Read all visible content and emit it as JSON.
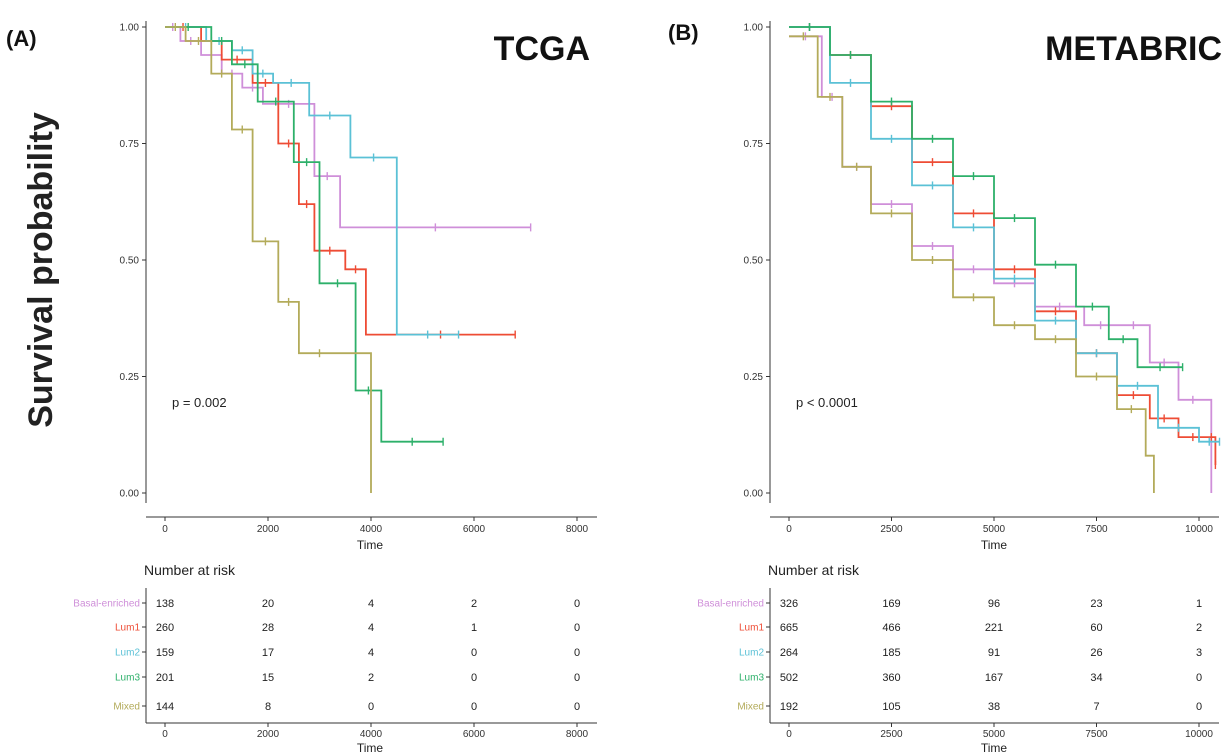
{
  "figure": {
    "ylabel": "Survival probability",
    "xlabel": "Time",
    "risk_title": "Number at risk",
    "groups": [
      "Basal-enriched",
      "Lum1",
      "Lum2",
      "Lum3",
      "Mixed"
    ],
    "colors": {
      "Basal-enriched": "#cf8fd9",
      "Lum1": "#ee4c35",
      "Lum2": "#5bc1d6",
      "Lum3": "#2db06a",
      "Mixed": "#b3ab5a"
    }
  },
  "chart_data": [
    {
      "type": "line",
      "panel_label": "(A)",
      "title": "TCGA",
      "xlabel": "Time",
      "ylabel": "Survival probability",
      "xlim": [
        0,
        8000
      ],
      "ylim": [
        0,
        1
      ],
      "xticks": [
        "0",
        "2000",
        "4000",
        "6000",
        "8000"
      ],
      "yticks": [
        "0.00",
        "0.25",
        "0.50",
        "0.75",
        "1.00"
      ],
      "annotation": "p = 0.002",
      "series": [
        {
          "name": "Basal-enriched",
          "x": [
            0,
            300,
            700,
            1100,
            1500,
            1900,
            2900,
            3400,
            7100
          ],
          "y": [
            1.0,
            0.97,
            0.94,
            0.9,
            0.87,
            0.835,
            0.68,
            0.57,
            0.57
          ]
        },
        {
          "name": "Lum1",
          "x": [
            0,
            700,
            1100,
            1700,
            2200,
            2600,
            2900,
            3500,
            3900,
            6800
          ],
          "y": [
            1.0,
            0.97,
            0.93,
            0.88,
            0.75,
            0.62,
            0.52,
            0.48,
            0.34,
            0.34
          ]
        },
        {
          "name": "Lum2",
          "x": [
            0,
            800,
            1300,
            1700,
            2100,
            2800,
            3600,
            4500,
            5700
          ],
          "y": [
            1.0,
            0.97,
            0.95,
            0.9,
            0.88,
            0.81,
            0.72,
            0.34,
            0.34
          ]
        },
        {
          "name": "Lum3",
          "x": [
            0,
            900,
            1300,
            1800,
            2500,
            3000,
            3700,
            4200,
            5400
          ],
          "y": [
            1.0,
            0.97,
            0.92,
            0.84,
            0.71,
            0.45,
            0.22,
            0.11,
            0.11
          ]
        },
        {
          "name": "Mixed",
          "x": [
            0,
            400,
            900,
            1300,
            1700,
            2200,
            2600,
            3400,
            4000
          ],
          "y": [
            1.0,
            0.97,
            0.9,
            0.78,
            0.54,
            0.41,
            0.3,
            0.3,
            0.0
          ]
        }
      ],
      "risk_table": {
        "times": [
          0,
          2000,
          4000,
          6000,
          8000
        ],
        "rows": [
          {
            "name": "Basal-enriched",
            "values": [
              "138",
              "20",
              "4",
              "2",
              "0"
            ]
          },
          {
            "name": "Lum1",
            "values": [
              "260",
              "28",
              "4",
              "1",
              "0"
            ]
          },
          {
            "name": "Lum2",
            "values": [
              "159",
              "17",
              "4",
              "0",
              "0"
            ]
          },
          {
            "name": "Lum3",
            "values": [
              "201",
              "15",
              "2",
              "0",
              "0"
            ]
          },
          {
            "name": "Mixed",
            "values": [
              "144",
              "8",
              "0",
              "0",
              "0"
            ]
          }
        ]
      }
    },
    {
      "type": "line",
      "panel_label": "(B)",
      "title": "METABRIC",
      "xlabel": "Time",
      "ylabel": "Survival probability",
      "xlim": [
        0,
        10000
      ],
      "ylim": [
        0,
        1
      ],
      "xticks": [
        "0",
        "2500",
        "5000",
        "7500",
        "10000"
      ],
      "yticks": [
        "0.00",
        "0.25",
        "0.50",
        "0.75",
        "1.00"
      ],
      "annotation": "p < 0.0001",
      "series": [
        {
          "name": "Basal-enriched",
          "x": [
            0,
            800,
            1300,
            2000,
            3000,
            4000,
            5000,
            6000,
            7200,
            8000,
            8800,
            9500,
            10200,
            10300
          ],
          "y": [
            0.98,
            0.85,
            0.7,
            0.62,
            0.53,
            0.48,
            0.45,
            0.4,
            0.36,
            0.36,
            0.28,
            0.2,
            0.2,
            0.0
          ]
        },
        {
          "name": "Lum1",
          "x": [
            0,
            1000,
            2000,
            3000,
            4000,
            5000,
            6000,
            7000,
            8000,
            8800,
            9500,
            10200,
            10400
          ],
          "y": [
            1.0,
            0.94,
            0.83,
            0.71,
            0.6,
            0.48,
            0.39,
            0.3,
            0.21,
            0.16,
            0.12,
            0.12,
            0.06
          ]
        },
        {
          "name": "Lum2",
          "x": [
            0,
            1000,
            2000,
            3000,
            4000,
            5000,
            6000,
            7000,
            8000,
            9000,
            10000,
            10500
          ],
          "y": [
            1.0,
            0.88,
            0.76,
            0.66,
            0.57,
            0.46,
            0.37,
            0.3,
            0.23,
            0.14,
            0.11,
            0.11
          ]
        },
        {
          "name": "Lum3",
          "x": [
            0,
            1000,
            2000,
            3000,
            4000,
            5000,
            6000,
            7000,
            7800,
            8500,
            9600
          ],
          "y": [
            1.0,
            0.94,
            0.84,
            0.76,
            0.68,
            0.59,
            0.49,
            0.4,
            0.33,
            0.27,
            0.27
          ]
        },
        {
          "name": "Mixed",
          "x": [
            0,
            700,
            1300,
            2000,
            3000,
            4000,
            5000,
            6000,
            7000,
            8000,
            8700,
            8900
          ],
          "y": [
            0.98,
            0.85,
            0.7,
            0.6,
            0.5,
            0.42,
            0.36,
            0.33,
            0.25,
            0.18,
            0.08,
            0.0
          ]
        }
      ],
      "risk_table": {
        "times": [
          0,
          2500,
          5000,
          7500,
          10000
        ],
        "rows": [
          {
            "name": "Basal-enriched",
            "values": [
              "326",
              "169",
              "96",
              "23",
              "1"
            ]
          },
          {
            "name": "Lum1",
            "values": [
              "665",
              "466",
              "221",
              "60",
              "2"
            ]
          },
          {
            "name": "Lum2",
            "values": [
              "264",
              "185",
              "91",
              "26",
              "3"
            ]
          },
          {
            "name": "Lum3",
            "values": [
              "502",
              "360",
              "167",
              "34",
              "0"
            ]
          },
          {
            "name": "Mixed",
            "values": [
              "192",
              "105",
              "38",
              "7",
              "0"
            ]
          }
        ]
      }
    }
  ]
}
